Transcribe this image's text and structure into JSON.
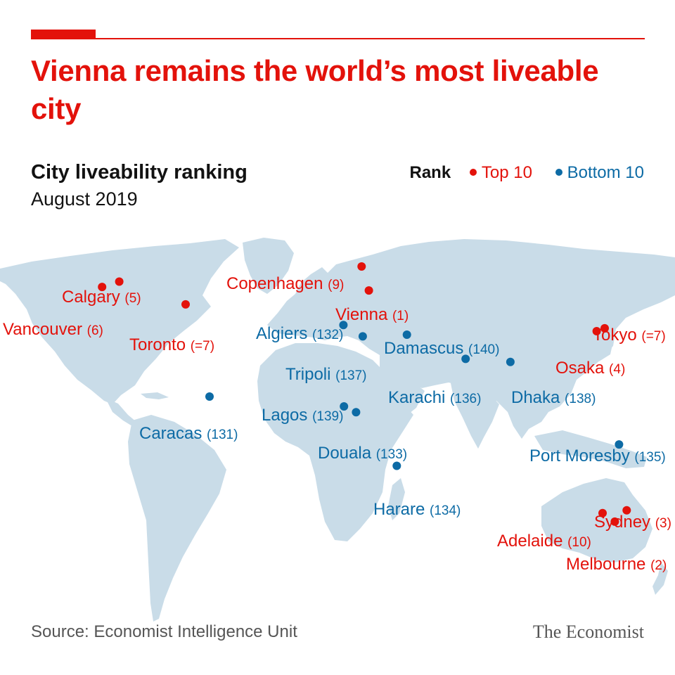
{
  "header": {
    "title": "Vienna remains the world’s most liveable city",
    "subtitle": "City liveability ranking",
    "date": "August 2019"
  },
  "legend": {
    "label": "Rank",
    "top": "Top 10",
    "bottom": "Bottom 10"
  },
  "colors": {
    "top": "#e3120b",
    "bottom": "#0d6ba5",
    "land": "#c9dce8"
  },
  "cities": [
    {
      "name": "Vienna",
      "rank": "(1)",
      "group": "top",
      "lon": 16.4,
      "lat": 48.2
    },
    {
      "name": "Melbourne",
      "rank": "(2)",
      "group": "top",
      "lon": 145.0,
      "lat": -37.8
    },
    {
      "name": "Sydney",
      "rank": "(3)",
      "group": "top",
      "lon": 151.2,
      "lat": -33.9
    },
    {
      "name": "Osaka",
      "rank": "(4)",
      "group": "top",
      "lon": 135.5,
      "lat": 34.7
    },
    {
      "name": "Calgary",
      "rank": "(5)",
      "group": "top",
      "lon": -114.1,
      "lat": 51.0
    },
    {
      "name": "Vancouver",
      "rank": "(6)",
      "group": "top",
      "lon": -123.1,
      "lat": 49.3
    },
    {
      "name": "Toronto",
      "rank": "(=7)",
      "group": "top",
      "lon": -79.4,
      "lat": 43.7
    },
    {
      "name": "Tokyo",
      "rank": "(=7)",
      "group": "top",
      "lon": 139.7,
      "lat": 35.7
    },
    {
      "name": "Copenhagen",
      "rank": "(9)",
      "group": "top",
      "lon": 12.6,
      "lat": 55.7
    },
    {
      "name": "Adelaide",
      "rank": "(10)",
      "group": "top",
      "lon": 138.6,
      "lat": -34.9
    },
    {
      "name": "Caracas",
      "rank": "(131)",
      "group": "bottom",
      "lon": -66.9,
      "lat": 10.5
    },
    {
      "name": "Algiers",
      "rank": "(132)",
      "group": "bottom",
      "lon": 3.1,
      "lat": 36.8
    },
    {
      "name": "Douala",
      "rank": "(133)",
      "group": "bottom",
      "lon": 9.7,
      "lat": 4.1
    },
    {
      "name": "Harare",
      "rank": "(134)",
      "group": "bottom",
      "lon": 31.0,
      "lat": -17.8
    },
    {
      "name": "Port Moresby",
      "rank": "(135)",
      "group": "bottom",
      "lon": 147.2,
      "lat": -9.4
    },
    {
      "name": "Karachi",
      "rank": "(136)",
      "group": "bottom",
      "lon": 67.0,
      "lat": 24.9
    },
    {
      "name": "Tripoli",
      "rank": "(137)",
      "group": "bottom",
      "lon": 13.2,
      "lat": 32.9
    },
    {
      "name": "Dhaka",
      "rank": "(138)",
      "group": "bottom",
      "lon": 90.4,
      "lat": 23.8
    },
    {
      "name": "Lagos",
      "rank": "(139)",
      "group": "bottom",
      "lon": 3.4,
      "lat": 6.5
    },
    {
      "name": "Damascus",
      "rank": "(140)",
      "group": "bottom",
      "lon": 36.3,
      "lat": 33.5
    }
  ],
  "footer": {
    "source": "Source: Economist Intelligence Unit",
    "brand": "The Economist"
  }
}
